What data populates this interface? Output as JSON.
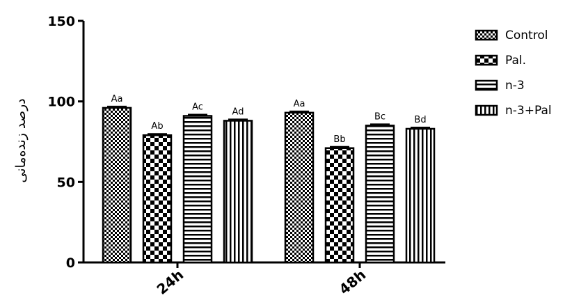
{
  "chart_data": {
    "type": "bar",
    "title": "",
    "xlabel": "",
    "ylabel": "درصد زنده‌مانی",
    "ylim": [
      0,
      150
    ],
    "yticks": [
      0,
      50,
      100,
      150
    ],
    "grid": false,
    "legend_position": "top-right",
    "categories": [
      "24h",
      "48h"
    ],
    "series": [
      {
        "name": "Control",
        "pattern": "checker-fine",
        "values": [
          96,
          93
        ],
        "labels": [
          "Aa",
          "Aa"
        ]
      },
      {
        "name": "Pal.",
        "pattern": "checker-large",
        "values": [
          79,
          71
        ],
        "labels": [
          "Ab",
          "Bb"
        ]
      },
      {
        "name": "n-3",
        "pattern": "horizontal",
        "values": [
          91,
          85
        ],
        "labels": [
          "Ac",
          "Bc"
        ]
      },
      {
        "name": "n-3+Pal",
        "pattern": "vertical",
        "values": [
          88,
          83
        ],
        "labels": [
          "Ad",
          "Bd"
        ]
      }
    ],
    "colors": {
      "bar_fill": "#ffffff",
      "bar_stroke": "#000000",
      "axis": "#000000"
    }
  }
}
